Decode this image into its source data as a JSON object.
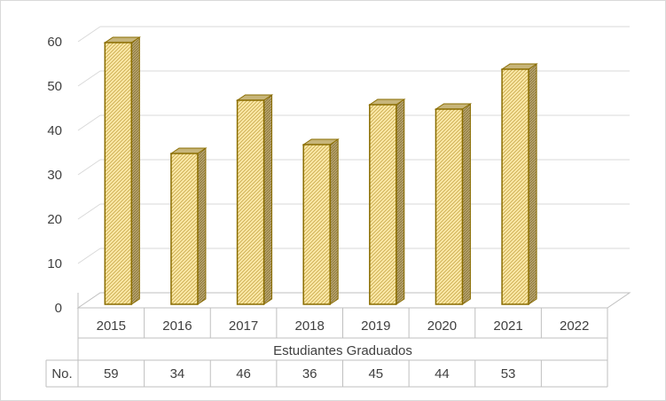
{
  "chart_data": {
    "type": "bar",
    "style": "3d-column",
    "categories": [
      "2015",
      "2016",
      "2017",
      "2018",
      "2019",
      "2020",
      "2021",
      "2022"
    ],
    "values": [
      59,
      34,
      46,
      36,
      45,
      44,
      53,
      null
    ],
    "value_labels": [
      "59",
      "34",
      "46",
      "36",
      "45",
      "44",
      "53",
      ""
    ],
    "category_group_label": "Estudiantes Graduados",
    "table_row_header": "No.",
    "ylim": [
      0,
      60
    ],
    "yticks": [
      "0",
      "10",
      "20",
      "30",
      "40",
      "50",
      "60"
    ],
    "grid": true,
    "legend": "none",
    "colors": {
      "bar_fill": "#fbe9a8",
      "bar_pattern": "#c8a84a",
      "bar_stroke": "#8a6d00",
      "bar_side": "#9c8a55",
      "bar_top": "#c7b57a",
      "grid": "#d9d9d9",
      "frame": "#bfbfbf",
      "text": "#404040"
    }
  }
}
